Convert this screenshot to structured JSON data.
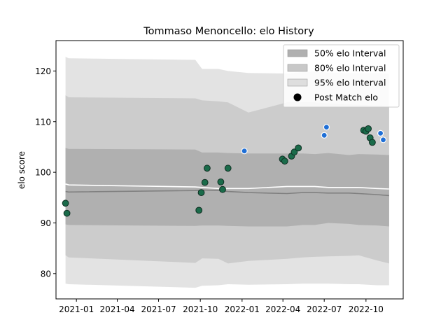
{
  "chart_data": {
    "type": "line",
    "title": "Tommaso Menoncello: elo History",
    "xlabel": "",
    "ylabel": "elo score",
    "xlim": [
      "2020-11-17",
      "2022-12-22"
    ],
    "ylim": [
      75,
      126
    ],
    "x_ticks": [
      "2021-01",
      "2021-04",
      "2021-07",
      "2021-10",
      "2022-01",
      "2022-04",
      "2022-07",
      "2022-10"
    ],
    "y_ticks": [
      80,
      90,
      100,
      110,
      120
    ],
    "grid": false,
    "legend_position": "top-right",
    "legend": [
      {
        "label": "50% elo Interval",
        "kind": "patch",
        "color": "#b0b0b0"
      },
      {
        "label": "80% elo Interval",
        "kind": "patch",
        "color": "#c8c8c8"
      },
      {
        "label": "95% elo Interval",
        "kind": "patch",
        "color": "#dedede"
      },
      {
        "label": "Post Match elo",
        "kind": "marker",
        "color": "#000000"
      }
    ],
    "colors": {
      "band50": "#b0b0b0",
      "band80": "#cccccc",
      "band95": "#e3e3e3",
      "mean_line": "#ffffff",
      "median_line": "#808080",
      "point_fill": "#1a6b4a",
      "point_edge": "#0f2e22",
      "point_blue": "#1f6fd6"
    },
    "bands": {
      "dates": [
        "2020-12-08",
        "2020-12-15",
        "2021-09-20",
        "2021-10-05",
        "2021-11-10",
        "2021-12-01",
        "2022-01-15",
        "2022-04-10",
        "2022-05-15",
        "2022-06-10",
        "2022-07-10",
        "2022-08-25",
        "2022-09-15",
        "2022-10-25",
        "2022-11-21"
      ],
      "p95_upper": [
        122.8,
        122.5,
        122.2,
        120.4,
        120.4,
        120.0,
        119.6,
        119.5,
        119.8,
        119.9,
        119.7,
        119.6,
        119.6,
        119.6,
        119.5
      ],
      "p95_lower": [
        78.0,
        77.9,
        77.2,
        77.6,
        77.7,
        77.9,
        77.8,
        77.9,
        78.0,
        78.0,
        78.0,
        77.9,
        77.9,
        77.7,
        77.7
      ],
      "p80_upper": [
        115.2,
        114.8,
        114.6,
        114.2,
        114.0,
        113.8,
        111.8,
        113.8,
        113.9,
        113.8,
        113.6,
        113.4,
        113.3,
        113.2,
        113.0
      ],
      "p80_lower": [
        83.6,
        83.2,
        82.1,
        83.0,
        82.9,
        82.0,
        82.5,
        82.9,
        83.2,
        83.3,
        83.4,
        83.5,
        83.6,
        82.6,
        82.0
      ],
      "p50_upper": [
        104.8,
        104.6,
        104.5,
        103.9,
        103.9,
        103.8,
        103.7,
        103.7,
        103.7,
        103.6,
        103.8,
        103.4,
        103.6,
        103.5,
        103.4
      ],
      "p50_lower": [
        89.7,
        89.6,
        89.4,
        89.5,
        89.5,
        89.4,
        89.3,
        89.3,
        89.6,
        89.6,
        90.0,
        89.8,
        89.6,
        89.5,
        89.3
      ],
      "mean": [
        97.7,
        97.5,
        97.1,
        97.0,
        96.8,
        96.8,
        96.8,
        97.2,
        97.2,
        97.2,
        97.0,
        97.0,
        97.0,
        96.8,
        96.7
      ],
      "median": [
        96.2,
        96.1,
        96.4,
        96.5,
        96.4,
        96.2,
        96.0,
        95.8,
        96.0,
        96.0,
        95.9,
        95.9,
        95.8,
        95.6,
        95.4
      ]
    },
    "post_match_points": [
      {
        "x": "2020-12-08",
        "y": 93.9,
        "style": "green"
      },
      {
        "x": "2020-12-11",
        "y": 91.9,
        "style": "green"
      },
      {
        "x": "2021-09-28",
        "y": 92.5,
        "style": "green"
      },
      {
        "x": "2021-10-03",
        "y": 96.0,
        "style": "green"
      },
      {
        "x": "2021-10-11",
        "y": 98.0,
        "style": "green"
      },
      {
        "x": "2021-10-16",
        "y": 100.8,
        "style": "green"
      },
      {
        "x": "2021-11-15",
        "y": 98.1,
        "style": "green"
      },
      {
        "x": "2021-11-19",
        "y": 96.6,
        "style": "green"
      },
      {
        "x": "2021-12-01",
        "y": 100.8,
        "style": "green"
      },
      {
        "x": "2022-01-06",
        "y": 104.2,
        "style": "blue"
      },
      {
        "x": "2022-03-31",
        "y": 102.6,
        "style": "green"
      },
      {
        "x": "2022-04-05",
        "y": 102.2,
        "style": "green"
      },
      {
        "x": "2022-04-20",
        "y": 103.2,
        "style": "green"
      },
      {
        "x": "2022-04-26",
        "y": 104.0,
        "style": "green"
      },
      {
        "x": "2022-05-05",
        "y": 104.8,
        "style": "green"
      },
      {
        "x": "2022-07-01",
        "y": 107.3,
        "style": "blue"
      },
      {
        "x": "2022-07-06",
        "y": 108.9,
        "style": "blue"
      },
      {
        "x": "2022-09-26",
        "y": 108.3,
        "style": "green"
      },
      {
        "x": "2022-10-01",
        "y": 108.1,
        "style": "green"
      },
      {
        "x": "2022-10-06",
        "y": 108.6,
        "style": "green"
      },
      {
        "x": "2022-10-10",
        "y": 106.8,
        "style": "green"
      },
      {
        "x": "2022-10-15",
        "y": 105.9,
        "style": "green"
      },
      {
        "x": "2022-11-02",
        "y": 107.7,
        "style": "blue"
      },
      {
        "x": "2022-11-08",
        "y": 106.4,
        "style": "blue"
      }
    ]
  }
}
